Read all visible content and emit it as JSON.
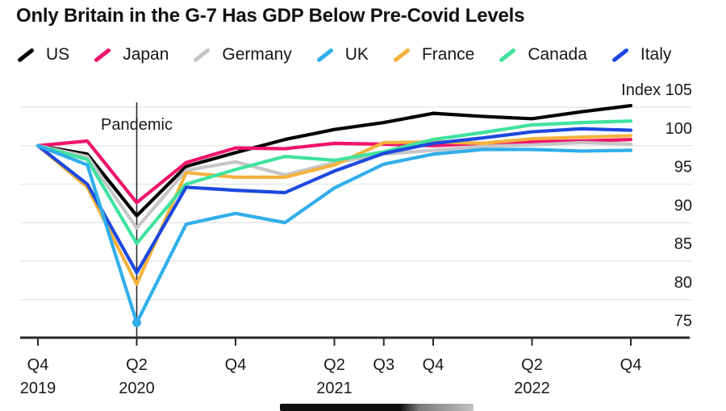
{
  "title": "Only Britain in the G-7 Has GDP Below Pre-Covid Levels",
  "chart_data": {
    "type": "line",
    "x": [
      "Q4 2019",
      "Q1 2020",
      "Q2 2020",
      "Q3 2020",
      "Q4 2020",
      "Q1 2021",
      "Q2 2021",
      "Q3 2021",
      "Q4 2021",
      "Q1 2022",
      "Q2 2022",
      "Q3 2022",
      "Q4 2022"
    ],
    "series": [
      {
        "name": "US",
        "color": "#000000",
        "values": [
          100,
          98.9,
          90.9,
          97.3,
          99.1,
          100.8,
          102.1,
          103.0,
          104.2,
          103.8,
          103.5,
          104.4,
          105.2
        ]
      },
      {
        "name": "Japan",
        "color": "#f0136b",
        "values": [
          100,
          100.6,
          92.6,
          97.8,
          99.7,
          99.6,
          100.3,
          100.2,
          100.0,
          100.3,
          100.5,
          100.6,
          100.8
        ]
      },
      {
        "name": "Germany",
        "color": "#c6c6c8",
        "values": [
          100,
          98.6,
          89.3,
          96.8,
          97.9,
          96.2,
          97.8,
          98.9,
          99.4,
          99.9,
          100.1,
          100.4,
          100.2
        ]
      },
      {
        "name": "UK",
        "color": "#31aeea",
        "values": [
          100,
          97.5,
          77.0,
          89.8,
          91.2,
          90.0,
          94.5,
          97.6,
          98.9,
          99.5,
          99.5,
          99.3,
          99.4
        ]
      },
      {
        "name": "France",
        "color": "#f5b23c",
        "values": [
          100,
          94.6,
          82.0,
          96.5,
          95.9,
          95.9,
          97.5,
          100.4,
          100.5,
          100.3,
          100.9,
          101.1,
          101.3
        ]
      },
      {
        "name": "Canada",
        "color": "#3fe39d",
        "values": [
          100,
          98.2,
          87.3,
          95.0,
          96.9,
          98.6,
          98.1,
          99.2,
          100.8,
          101.7,
          102.7,
          103.0,
          103.2
        ]
      },
      {
        "name": "Italy",
        "color": "#1d49df",
        "values": [
          100,
          95.0,
          83.5,
          94.6,
          94.2,
          93.9,
          96.7,
          99.0,
          100.3,
          101.0,
          101.8,
          102.2,
          102.0
        ]
      }
    ],
    "y_ticks": [
      {
        "value": 105,
        "label": "Index 105"
      },
      {
        "value": 100,
        "label": "100"
      },
      {
        "value": 95,
        "label": "95"
      },
      {
        "value": 90,
        "label": "90"
      },
      {
        "value": 85,
        "label": "85"
      },
      {
        "value": 80,
        "label": "80"
      },
      {
        "value": 75,
        "label": "75"
      }
    ],
    "x_ticks": [
      {
        "i": 0,
        "label": "Q4",
        "year": "2019"
      },
      {
        "i": 2,
        "label": "Q2",
        "year": "2020"
      },
      {
        "i": 4,
        "label": "Q4",
        "year": ""
      },
      {
        "i": 6,
        "label": "Q2",
        "year": "2021"
      },
      {
        "i": 7,
        "label": "Q3",
        "year": ""
      },
      {
        "i": 8,
        "label": "Q4",
        "year": ""
      },
      {
        "i": 10,
        "label": "Q2",
        "year": "2022"
      },
      {
        "i": 12,
        "label": "Q4",
        "year": ""
      }
    ],
    "annotation": {
      "text": "Pandemic",
      "at_index": 2
    },
    "marker": {
      "series": "UK",
      "at_index": 2,
      "value": 77.0
    },
    "ylim": [
      74,
      105.5
    ],
    "ylabel": "Index",
    "grid": "horizontal",
    "legend_position": "top"
  }
}
